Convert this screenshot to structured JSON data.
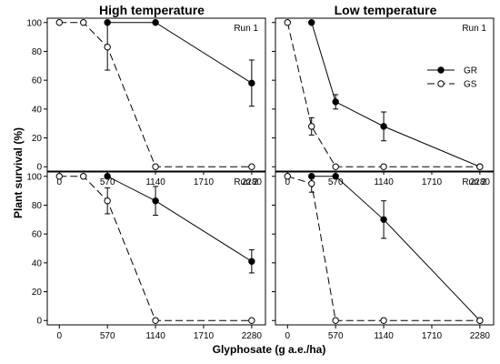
{
  "chart_data": {
    "type": "line",
    "col_titles": [
      "High temperature",
      "Low temperature"
    ],
    "ylabel": "Plant survival (%)",
    "xlabel": "Glyphosate (g a.e./ha)",
    "x_ticks": [
      "0",
      "570",
      "1140",
      "1710",
      "2280"
    ],
    "y_ticks": [
      "0",
      "20",
      "40",
      "60",
      "80",
      "100"
    ],
    "xlim": [
      -100,
      2400
    ],
    "ylim": [
      -3,
      103
    ],
    "legend": {
      "location": "right",
      "panel": "low-temperature-run-1",
      "entries": [
        "GR",
        "GS"
      ]
    },
    "panels": [
      {
        "id": "high-temperature-run-1",
        "col": 0,
        "row": 0,
        "run_label": "Run 1",
        "series": [
          {
            "name": "GR",
            "style": "solid-filled",
            "x": [
              570,
              1140,
              2280
            ],
            "y": [
              100,
              100,
              58
            ],
            "err": [
              0,
              0,
              16
            ]
          },
          {
            "name": "GS",
            "style": "dashed-open",
            "x": [
              0,
              285,
              570,
              1140,
              2280
            ],
            "y": [
              100,
              100,
              83,
              0,
              0
            ],
            "err": [
              0,
              0,
              16,
              0,
              0
            ]
          }
        ]
      },
      {
        "id": "low-temperature-run-1",
        "col": 1,
        "row": 0,
        "run_label": "Run 1",
        "series": [
          {
            "name": "GR",
            "style": "solid-filled",
            "x": [
              285,
              570,
              1140,
              2280
            ],
            "y": [
              100,
              45,
              28,
              0
            ],
            "err": [
              0,
              5,
              10,
              0
            ]
          },
          {
            "name": "GS",
            "style": "dashed-open",
            "x": [
              0,
              285,
              570,
              1140,
              2280
            ],
            "y": [
              100,
              28,
              0,
              0,
              0
            ],
            "err": [
              0,
              6,
              0,
              0,
              0
            ]
          }
        ]
      },
      {
        "id": "high-temperature-run-2",
        "col": 0,
        "row": 1,
        "run_label": "Run 2",
        "series": [
          {
            "name": "GR",
            "style": "solid-filled",
            "x": [
              570,
              1140,
              2280
            ],
            "y": [
              100,
              83,
              41
            ],
            "err": [
              0,
              10,
              8
            ]
          },
          {
            "name": "GS",
            "style": "dashed-open",
            "x": [
              0,
              285,
              570,
              1140,
              2280
            ],
            "y": [
              100,
              100,
              83,
              0,
              0
            ],
            "err": [
              0,
              0,
              9,
              0,
              0
            ]
          }
        ]
      },
      {
        "id": "low-temperature-run-2",
        "col": 1,
        "row": 1,
        "run_label": "Run 2",
        "series": [
          {
            "name": "GR",
            "style": "solid-filled",
            "x": [
              285,
              570,
              1140,
              2280
            ],
            "y": [
              100,
              100,
              70,
              0
            ],
            "err": [
              0,
              0,
              13,
              0
            ]
          },
          {
            "name": "GS",
            "style": "dashed-open",
            "x": [
              0,
              285,
              570,
              1140,
              2280
            ],
            "y": [
              100,
              95,
              0,
              0,
              0
            ],
            "err": [
              0,
              6,
              0,
              0,
              0
            ]
          }
        ]
      }
    ],
    "colors": {
      "line": "#000000",
      "open_marker_fill": "#ffffff",
      "filled_marker": "#000000"
    }
  }
}
